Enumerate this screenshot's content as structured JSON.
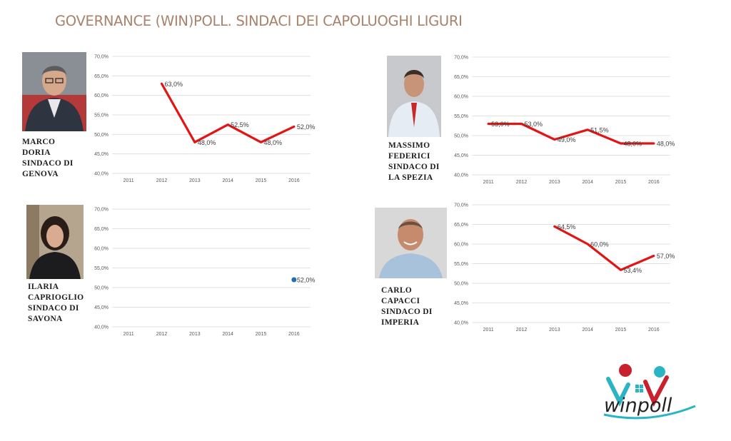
{
  "title": "GOVERNANCE (WIN)POLL. SINDACI DEI CAPOLUOGHI LIGURI",
  "colors": {
    "title": "#a8826a",
    "line": "#e21414",
    "point": "#1f6fb5",
    "grid": "#d9d9d9",
    "tick": "#595959",
    "logo_red": "#c8202e",
    "logo_teal": "#2bb5c4"
  },
  "logo": {
    "text": "winpoll"
  },
  "panels": [
    {
      "id": "genova",
      "caption": [
        "MARCO",
        "DORIA",
        "SINDACO DI",
        "GENOVA"
      ],
      "photo_icon": "portrait-man-glasses-icon"
    },
    {
      "id": "spezia",
      "caption": [
        "MASSIMO",
        "FEDERICI",
        "SINDACO DI",
        "LA SPEZIA"
      ],
      "photo_icon": "portrait-man-red-tie-icon"
    },
    {
      "id": "savona",
      "caption": [
        "ILARIA",
        "CAPRIOGLIO",
        "SINDACO DI",
        "SAVONA"
      ],
      "photo_icon": "portrait-woman-curly-hair-icon"
    },
    {
      "id": "imperia",
      "caption": [
        "CARLO",
        "CAPACCI",
        "SINDACO DI",
        "IMPERIA"
      ],
      "photo_icon": "portrait-man-smiling-icon"
    }
  ],
  "chart_data": [
    {
      "type": "line",
      "title": "",
      "categories": [
        "2011",
        "2012",
        "2013",
        "2014",
        "2015",
        "2016"
      ],
      "series": [
        {
          "values": [
            null,
            63.0,
            48.0,
            52.5,
            48.0,
            52.0
          ]
        }
      ],
      "data_labels": [
        "",
        "63,0%",
        "48,0%",
        "52,5%",
        "48,0%",
        "52,0%"
      ],
      "y_ticks": [
        "70,0%",
        "65,0%",
        "60,0%",
        "55,0%",
        "50,0%",
        "45,0%",
        "40,0%"
      ],
      "ylim": [
        40,
        70
      ],
      "grid": true,
      "legend": "none"
    },
    {
      "type": "line",
      "title": "",
      "categories": [
        "2011",
        "2012",
        "2013",
        "2014",
        "2015",
        "2016"
      ],
      "series": [
        {
          "values": [
            53.0,
            53.0,
            49.0,
            51.5,
            48.0,
            48.0
          ]
        }
      ],
      "data_labels": [
        "53,0%",
        "53,0%",
        "49,0%",
        "51,5%",
        "48,0%",
        "48,0%"
      ],
      "y_ticks": [
        "70,0%",
        "65,0%",
        "60,0%",
        "55,0%",
        "50,0%",
        "45,0%",
        "40,0%"
      ],
      "ylim": [
        40,
        70
      ],
      "grid": true,
      "legend": "none"
    },
    {
      "type": "scatter",
      "title": "",
      "categories": [
        "2011",
        "2012",
        "2013",
        "2014",
        "2015",
        "2016"
      ],
      "series": [
        {
          "values": [
            null,
            null,
            null,
            null,
            null,
            52.0
          ]
        }
      ],
      "data_labels": [
        "",
        "",
        "",
        "",
        "",
        "52,0%"
      ],
      "y_ticks": [
        "70,0%",
        "65,0%",
        "60,0%",
        "55,0%",
        "50,0%",
        "45,0%",
        "40,0%"
      ],
      "ylim": [
        40,
        70
      ],
      "grid": true,
      "legend": "none"
    },
    {
      "type": "line",
      "title": "",
      "categories": [
        "2011",
        "2012",
        "2013",
        "2014",
        "2015",
        "2016"
      ],
      "series": [
        {
          "values": [
            null,
            null,
            64.5,
            60.0,
            53.4,
            57.0
          ]
        }
      ],
      "data_labels": [
        "",
        "",
        "64,5%",
        "60,0%",
        "53,4%",
        "57,0%"
      ],
      "y_ticks": [
        "70,0%",
        "65,0%",
        "60,0%",
        "55,0%",
        "50,0%",
        "45,0%",
        "40,0%"
      ],
      "ylim": [
        40,
        70
      ],
      "grid": true,
      "legend": "none"
    }
  ]
}
